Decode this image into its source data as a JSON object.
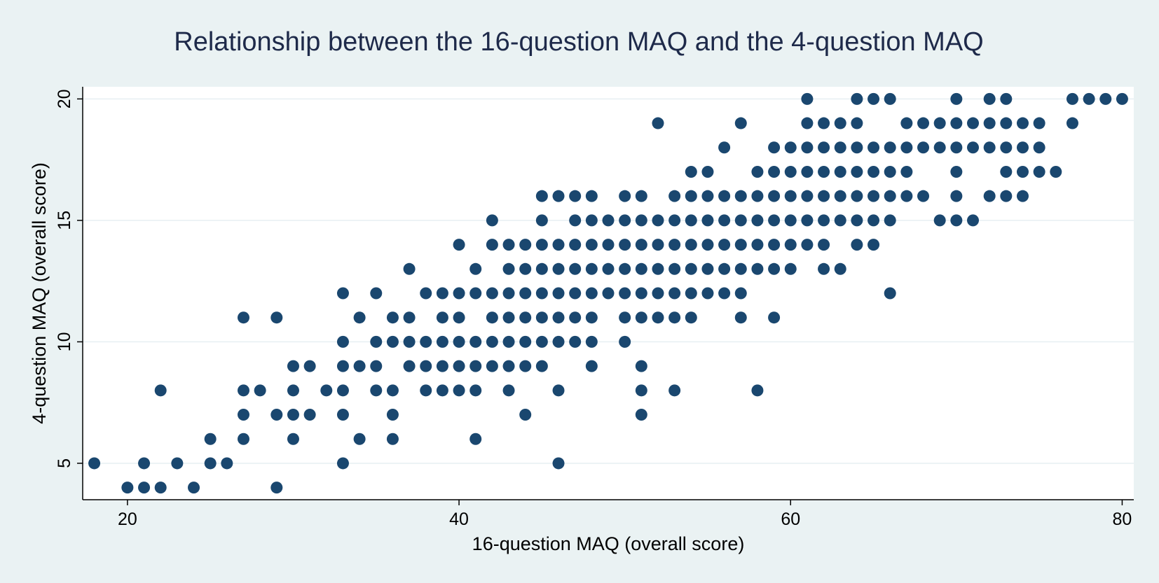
{
  "chart_data": {
    "type": "scatter",
    "title": "Relationship between the 16-question MAQ and the 4-question MAQ",
    "xlabel": "16-question MAQ (overall score)",
    "ylabel": "4-question MAQ (overall score)",
    "xlim": [
      17.3,
      80.7
    ],
    "ylim": [
      3.5,
      20.5
    ],
    "xticks": [
      "20",
      "40",
      "60",
      "80"
    ],
    "yticks": [
      "5",
      "10",
      "15",
      "20"
    ],
    "grid": true,
    "legend": "none",
    "colors": {
      "outer_background": "#eaf2f3",
      "plot_background": "#ffffff",
      "gridline": "#e6eff2",
      "marker": "#1a476f",
      "title": "#1e2a4a",
      "axis": "#000000"
    },
    "points": [
      [
        18,
        5
      ],
      [
        20,
        4
      ],
      [
        21,
        4
      ],
      [
        21,
        5
      ],
      [
        22,
        4
      ],
      [
        22,
        8
      ],
      [
        23,
        5
      ],
      [
        24,
        4
      ],
      [
        25,
        5
      ],
      [
        25,
        6
      ],
      [
        26,
        5
      ],
      [
        27,
        6
      ],
      [
        27,
        7
      ],
      [
        27,
        8
      ],
      [
        27,
        11
      ],
      [
        28,
        8
      ],
      [
        29,
        4
      ],
      [
        29,
        7
      ],
      [
        29,
        11
      ],
      [
        30,
        6
      ],
      [
        30,
        7
      ],
      [
        30,
        8
      ],
      [
        30,
        9
      ],
      [
        31,
        7
      ],
      [
        31,
        9
      ],
      [
        32,
        8
      ],
      [
        33,
        5
      ],
      [
        33,
        7
      ],
      [
        33,
        8
      ],
      [
        33,
        9
      ],
      [
        33,
        10
      ],
      [
        33,
        12
      ],
      [
        34,
        6
      ],
      [
        34,
        9
      ],
      [
        34,
        11
      ],
      [
        35,
        8
      ],
      [
        35,
        9
      ],
      [
        35,
        10
      ],
      [
        35,
        12
      ],
      [
        36,
        6
      ],
      [
        36,
        7
      ],
      [
        36,
        8
      ],
      [
        36,
        10
      ],
      [
        36,
        11
      ],
      [
        37,
        9
      ],
      [
        37,
        10
      ],
      [
        37,
        11
      ],
      [
        37,
        13
      ],
      [
        38,
        8
      ],
      [
        38,
        9
      ],
      [
        38,
        10
      ],
      [
        38,
        12
      ],
      [
        39,
        8
      ],
      [
        39,
        9
      ],
      [
        39,
        10
      ],
      [
        39,
        11
      ],
      [
        39,
        12
      ],
      [
        40,
        8
      ],
      [
        40,
        9
      ],
      [
        40,
        10
      ],
      [
        40,
        11
      ],
      [
        40,
        12
      ],
      [
        40,
        14
      ],
      [
        41,
        6
      ],
      [
        41,
        8
      ],
      [
        41,
        9
      ],
      [
        41,
        10
      ],
      [
        41,
        12
      ],
      [
        41,
        13
      ],
      [
        42,
        9
      ],
      [
        42,
        10
      ],
      [
        42,
        11
      ],
      [
        42,
        12
      ],
      [
        42,
        14
      ],
      [
        42,
        15
      ],
      [
        43,
        8
      ],
      [
        43,
        9
      ],
      [
        43,
        10
      ],
      [
        43,
        11
      ],
      [
        43,
        12
      ],
      [
        43,
        13
      ],
      [
        43,
        14
      ],
      [
        44,
        7
      ],
      [
        44,
        9
      ],
      [
        44,
        10
      ],
      [
        44,
        11
      ],
      [
        44,
        12
      ],
      [
        44,
        13
      ],
      [
        44,
        14
      ],
      [
        45,
        9
      ],
      [
        45,
        10
      ],
      [
        45,
        11
      ],
      [
        45,
        12
      ],
      [
        45,
        13
      ],
      [
        45,
        14
      ],
      [
        45,
        15
      ],
      [
        45,
        16
      ],
      [
        46,
        5
      ],
      [
        46,
        8
      ],
      [
        46,
        10
      ],
      [
        46,
        11
      ],
      [
        46,
        12
      ],
      [
        46,
        13
      ],
      [
        46,
        14
      ],
      [
        46,
        16
      ],
      [
        47,
        10
      ],
      [
        47,
        11
      ],
      [
        47,
        12
      ],
      [
        47,
        13
      ],
      [
        47,
        14
      ],
      [
        47,
        15
      ],
      [
        47,
        16
      ],
      [
        48,
        9
      ],
      [
        48,
        10
      ],
      [
        48,
        11
      ],
      [
        48,
        12
      ],
      [
        48,
        13
      ],
      [
        48,
        14
      ],
      [
        48,
        15
      ],
      [
        48,
        16
      ],
      [
        49,
        12
      ],
      [
        49,
        13
      ],
      [
        49,
        14
      ],
      [
        49,
        15
      ],
      [
        50,
        10
      ],
      [
        50,
        11
      ],
      [
        50,
        12
      ],
      [
        50,
        13
      ],
      [
        50,
        14
      ],
      [
        50,
        15
      ],
      [
        50,
        16
      ],
      [
        51,
        7
      ],
      [
        51,
        8
      ],
      [
        51,
        9
      ],
      [
        51,
        11
      ],
      [
        51,
        12
      ],
      [
        51,
        13
      ],
      [
        51,
        14
      ],
      [
        51,
        15
      ],
      [
        51,
        16
      ],
      [
        52,
        11
      ],
      [
        52,
        12
      ],
      [
        52,
        13
      ],
      [
        52,
        14
      ],
      [
        52,
        15
      ],
      [
        52,
        19
      ],
      [
        53,
        8
      ],
      [
        53,
        11
      ],
      [
        53,
        12
      ],
      [
        53,
        13
      ],
      [
        53,
        14
      ],
      [
        53,
        15
      ],
      [
        53,
        16
      ],
      [
        54,
        11
      ],
      [
        54,
        12
      ],
      [
        54,
        13
      ],
      [
        54,
        14
      ],
      [
        54,
        15
      ],
      [
        54,
        16
      ],
      [
        54,
        17
      ],
      [
        55,
        12
      ],
      [
        55,
        13
      ],
      [
        55,
        14
      ],
      [
        55,
        15
      ],
      [
        55,
        16
      ],
      [
        55,
        17
      ],
      [
        56,
        12
      ],
      [
        56,
        13
      ],
      [
        56,
        14
      ],
      [
        56,
        15
      ],
      [
        56,
        16
      ],
      [
        56,
        18
      ],
      [
        57,
        11
      ],
      [
        57,
        12
      ],
      [
        57,
        13
      ],
      [
        57,
        14
      ],
      [
        57,
        15
      ],
      [
        57,
        16
      ],
      [
        57,
        19
      ],
      [
        58,
        8
      ],
      [
        58,
        13
      ],
      [
        58,
        14
      ],
      [
        58,
        15
      ],
      [
        58,
        16
      ],
      [
        58,
        17
      ],
      [
        59,
        11
      ],
      [
        59,
        13
      ],
      [
        59,
        14
      ],
      [
        59,
        15
      ],
      [
        59,
        16
      ],
      [
        59,
        17
      ],
      [
        59,
        18
      ],
      [
        60,
        13
      ],
      [
        60,
        14
      ],
      [
        60,
        15
      ],
      [
        60,
        16
      ],
      [
        60,
        17
      ],
      [
        60,
        18
      ],
      [
        61,
        14
      ],
      [
        61,
        15
      ],
      [
        61,
        16
      ],
      [
        61,
        17
      ],
      [
        61,
        18
      ],
      [
        61,
        19
      ],
      [
        61,
        20
      ],
      [
        62,
        13
      ],
      [
        62,
        14
      ],
      [
        62,
        15
      ],
      [
        62,
        16
      ],
      [
        62,
        17
      ],
      [
        62,
        18
      ],
      [
        62,
        19
      ],
      [
        63,
        13
      ],
      [
        63,
        15
      ],
      [
        63,
        16
      ],
      [
        63,
        17
      ],
      [
        63,
        18
      ],
      [
        63,
        19
      ],
      [
        64,
        14
      ],
      [
        64,
        15
      ],
      [
        64,
        16
      ],
      [
        64,
        17
      ],
      [
        64,
        18
      ],
      [
        64,
        19
      ],
      [
        64,
        20
      ],
      [
        65,
        14
      ],
      [
        65,
        15
      ],
      [
        65,
        16
      ],
      [
        65,
        17
      ],
      [
        65,
        18
      ],
      [
        65,
        20
      ],
      [
        66,
        12
      ],
      [
        66,
        15
      ],
      [
        66,
        16
      ],
      [
        66,
        17
      ],
      [
        66,
        18
      ],
      [
        66,
        20
      ],
      [
        67,
        16
      ],
      [
        67,
        17
      ],
      [
        67,
        18
      ],
      [
        67,
        19
      ],
      [
        68,
        16
      ],
      [
        68,
        18
      ],
      [
        68,
        19
      ],
      [
        69,
        15
      ],
      [
        69,
        18
      ],
      [
        69,
        19
      ],
      [
        70,
        15
      ],
      [
        70,
        16
      ],
      [
        70,
        17
      ],
      [
        70,
        18
      ],
      [
        70,
        19
      ],
      [
        70,
        20
      ],
      [
        71,
        15
      ],
      [
        71,
        18
      ],
      [
        71,
        19
      ],
      [
        72,
        16
      ],
      [
        72,
        18
      ],
      [
        72,
        19
      ],
      [
        72,
        20
      ],
      [
        73,
        16
      ],
      [
        73,
        17
      ],
      [
        73,
        18
      ],
      [
        73,
        19
      ],
      [
        73,
        20
      ],
      [
        74,
        16
      ],
      [
        74,
        17
      ],
      [
        74,
        18
      ],
      [
        74,
        19
      ],
      [
        75,
        17
      ],
      [
        75,
        18
      ],
      [
        75,
        19
      ],
      [
        76,
        17
      ],
      [
        77,
        19
      ],
      [
        77,
        20
      ],
      [
        78,
        20
      ],
      [
        79,
        20
      ],
      [
        80,
        20
      ]
    ]
  }
}
